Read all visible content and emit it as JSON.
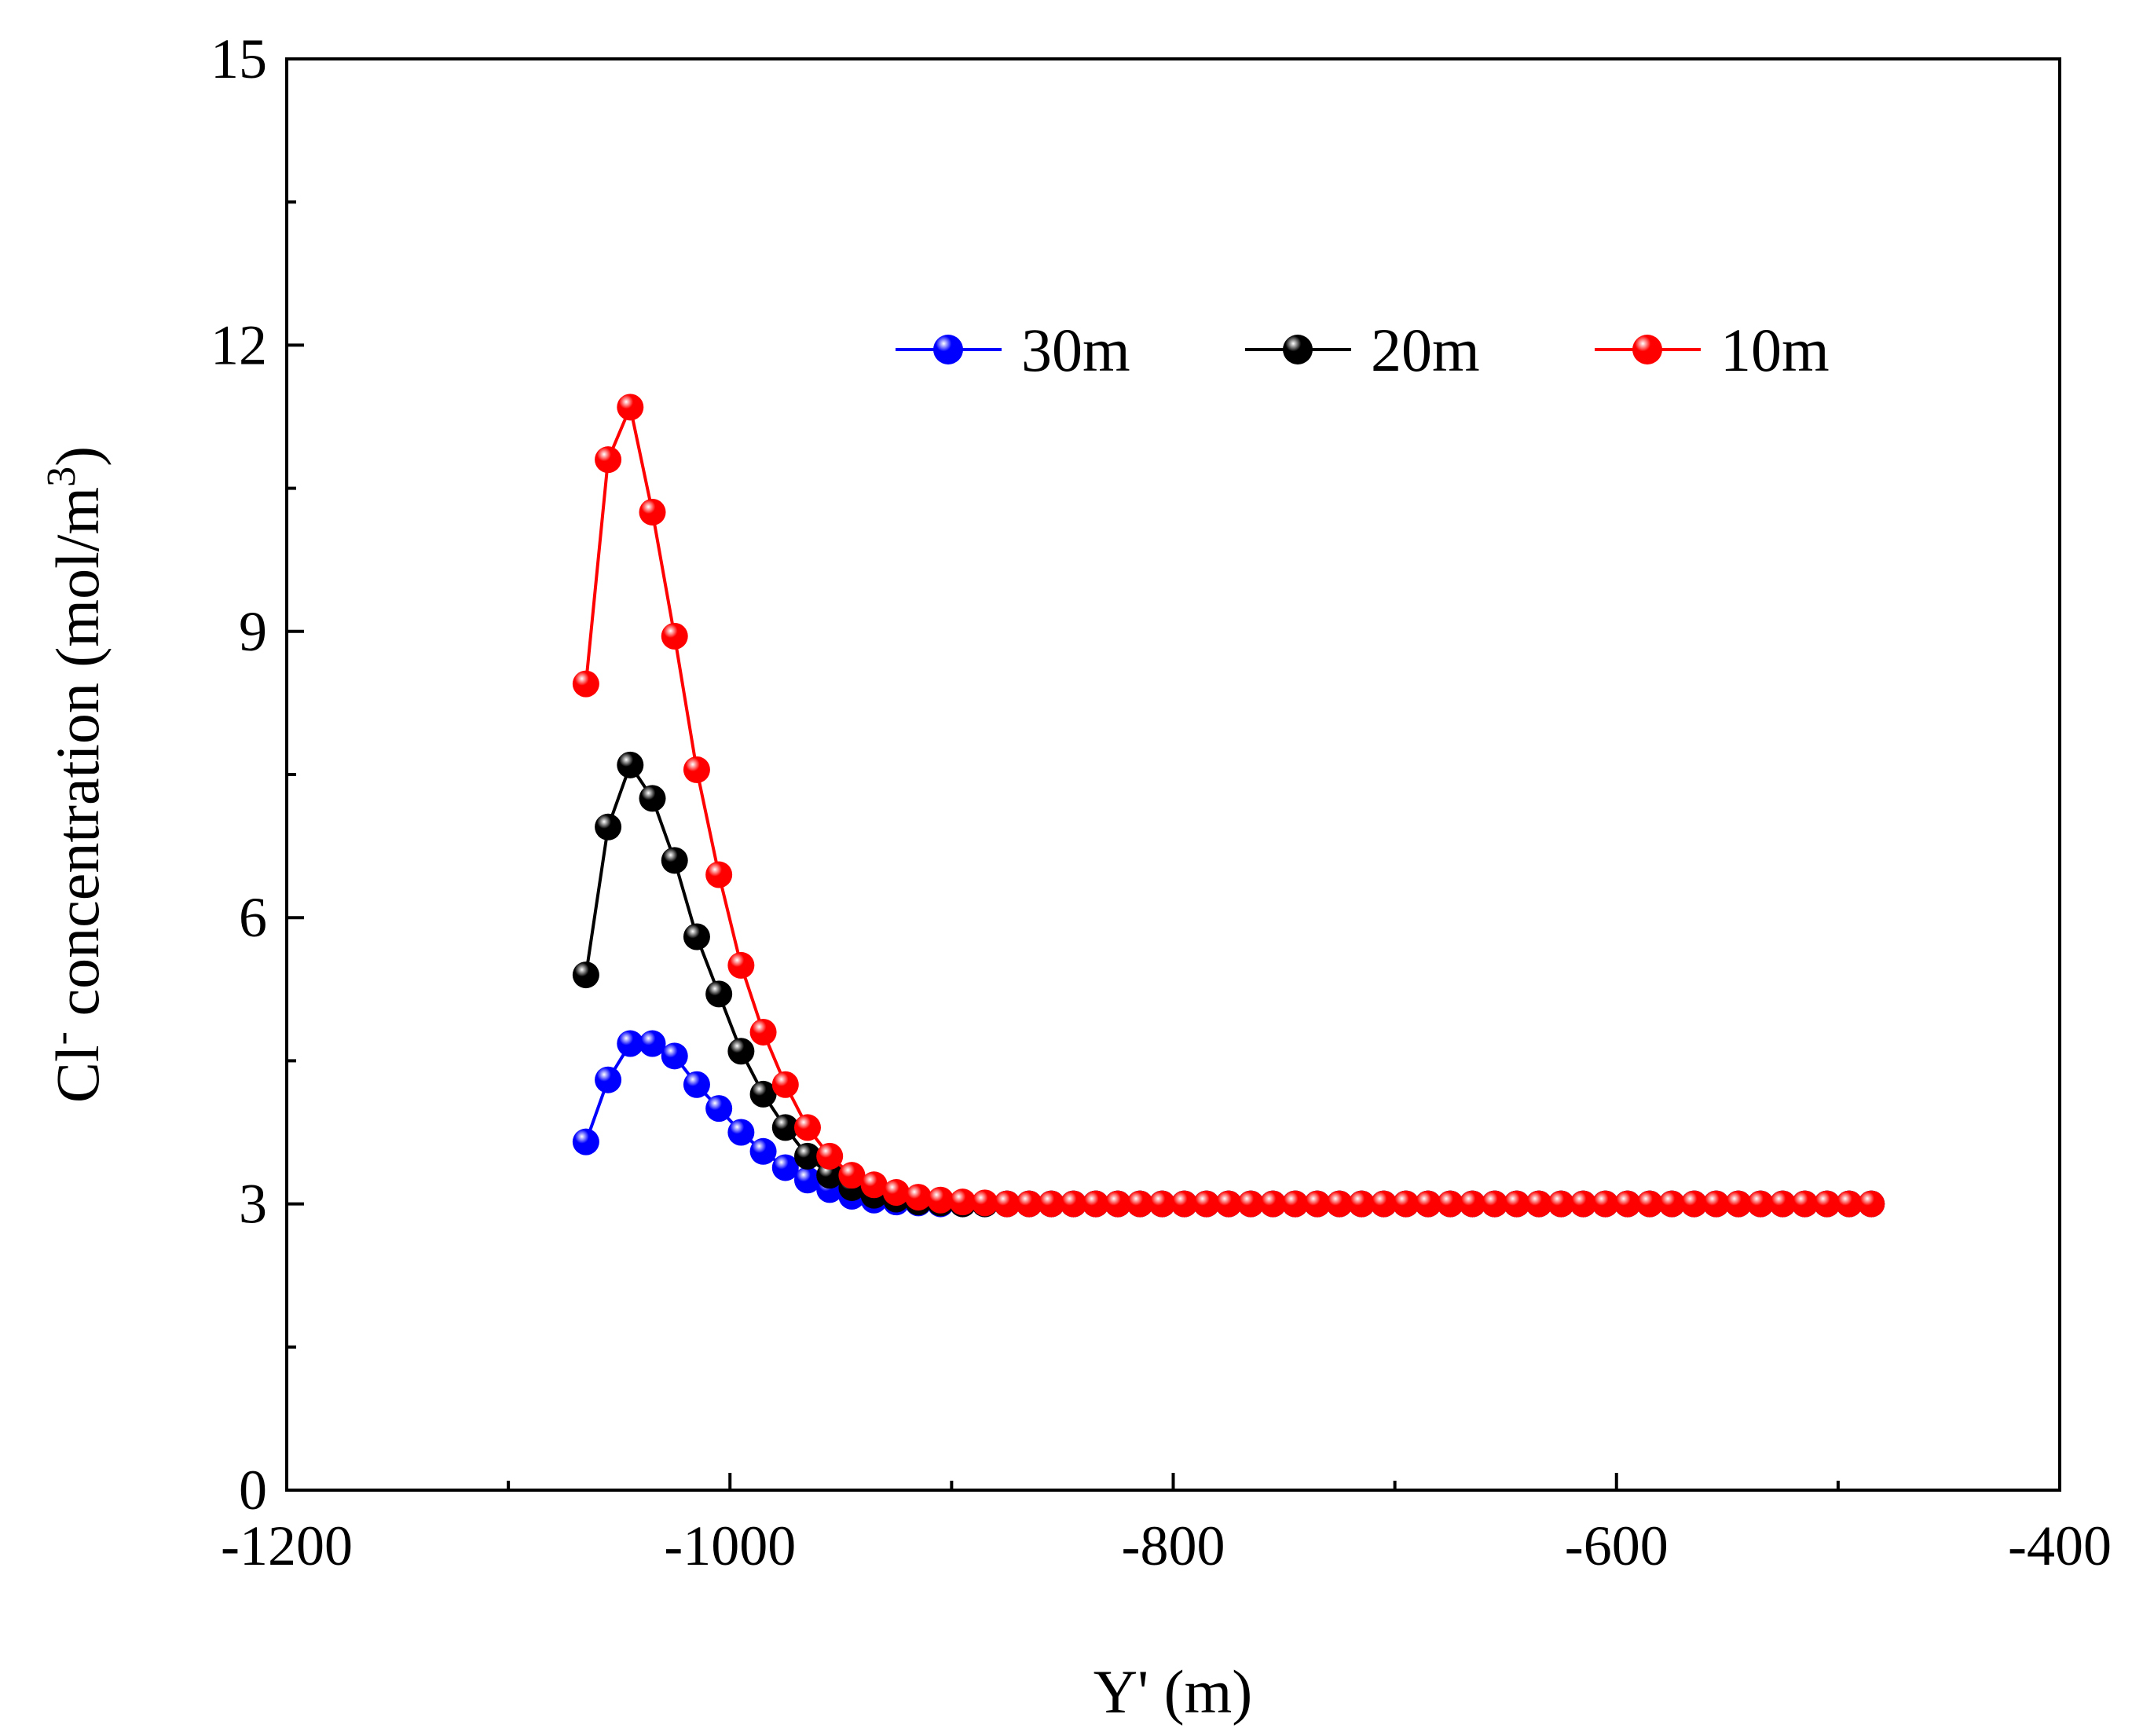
{
  "chart_data": {
    "type": "line",
    "xlabel": "Y' (m)",
    "ylabel_main": "Cl",
    "ylabel_sup": "-",
    "ylabel_rest": " concentration (mol/m",
    "ylabel_unit_sup": "3",
    "ylabel_close": ")",
    "xlim": [
      -1200,
      -400
    ],
    "ylim": [
      0,
      15
    ],
    "xticks": [
      -1200,
      -1000,
      -800,
      -600,
      -400
    ],
    "xtick_labels": [
      "-1200",
      "-1000",
      "-800",
      "-600",
      "-400"
    ],
    "yticks": [
      0,
      3,
      6,
      9,
      12,
      15
    ],
    "ytick_labels": [
      "0",
      "3",
      "6",
      "9",
      "12",
      "15"
    ],
    "legend_position": "top-right",
    "marker": "sphere",
    "x_start": -1065,
    "x_step": 10,
    "series": [
      {
        "name": "30m",
        "color": "#0000ff",
        "point_count": 59,
        "head_values": [
          3.65,
          4.3,
          4.68,
          4.68,
          4.55,
          4.25,
          4.0,
          3.75,
          3.55,
          3.38,
          3.25,
          3.15,
          3.08,
          3.04,
          3.02,
          3.01
        ],
        "tail_value": 3.0
      },
      {
        "name": "20m",
        "color": "#000000",
        "point_count": 59,
        "head_values": [
          5.4,
          6.95,
          7.6,
          7.25,
          6.6,
          5.8,
          5.2,
          4.6,
          4.15,
          3.8,
          3.5,
          3.3,
          3.17,
          3.09,
          3.05,
          3.02,
          3.01
        ],
        "tail_value": 3.0
      },
      {
        "name": "10m",
        "color": "#ff0000",
        "point_count": 59,
        "head_values": [
          8.45,
          10.8,
          11.35,
          10.25,
          8.95,
          7.55,
          6.45,
          5.5,
          4.8,
          4.25,
          3.8,
          3.5,
          3.3,
          3.2,
          3.12,
          3.07,
          3.04,
          3.02,
          3.01
        ],
        "tail_value": 3.0
      }
    ]
  }
}
